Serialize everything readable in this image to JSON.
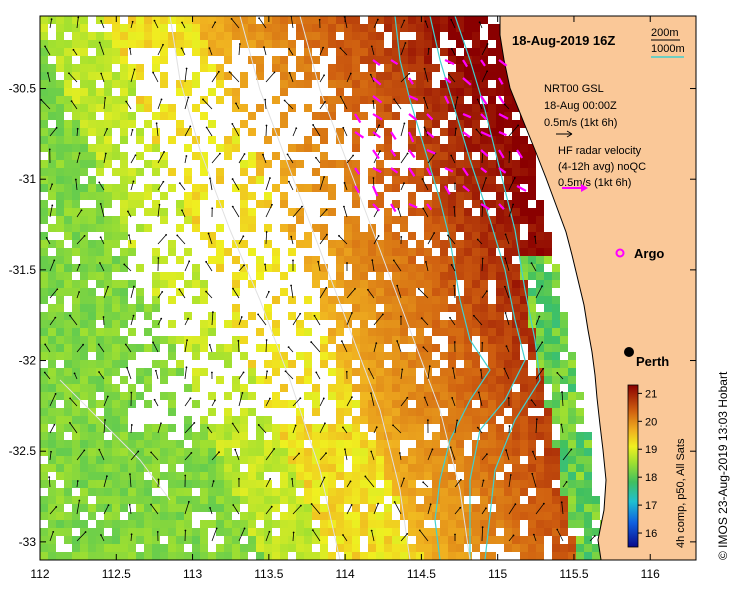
{
  "title": "18-Aug-2019 16Z",
  "credit": "© IMOS 23-Aug-2019 13:03 Hobart",
  "isobath_legend": {
    "line1": "200m",
    "line2": "1000m"
  },
  "nrt_legend": {
    "line1": "NRT00 GSL",
    "line2": "18-Aug 00:00Z",
    "line3": "0.5m/s (1kt 6h)"
  },
  "hf_legend": {
    "line1": "HF radar velocity",
    "line2": "(4-12h avg) noQC",
    "line3": "0.5m/s (1kt 6h)"
  },
  "argo_label": "Argo",
  "city_label": "Perth",
  "colorbar": {
    "label": "4h comp, p50, All Sats",
    "min": 15.5,
    "max": 21.3,
    "ticks": [
      "16",
      "17",
      "18",
      "19",
      "20",
      "21"
    ]
  },
  "colors": {
    "land": "#fac898",
    "isobath": "#40d0d0",
    "hf_arrow": "#ff00ff",
    "coast": "#000000"
  },
  "chart_data": {
    "type": "heatmap",
    "variable": "sea surface temperature",
    "x_ticks": [
      "112",
      "112.5",
      "113",
      "113.5",
      "114",
      "114.5",
      "115",
      "115.5",
      "116"
    ],
    "y_ticks": [
      "-30.5",
      "-31",
      "-31.5",
      "-32",
      "-32.5",
      "-33"
    ],
    "xlim": [
      112,
      116.3
    ],
    "ylim": [
      -33.1,
      -30.1
    ],
    "perth": {
      "lon": 115.86,
      "lat": -31.95
    },
    "argo": {
      "lon": 115.83,
      "lat": -31.45
    }
  }
}
